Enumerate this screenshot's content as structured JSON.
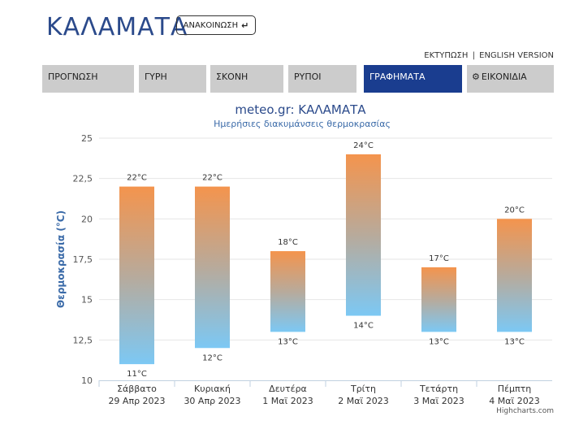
{
  "header": {
    "title": "ΚΑΛΑΜΑΤΑ",
    "announce_label": "ΑΝΑΚΟΙΝΩΣΗ",
    "announce_icon": "return-arrow-icon",
    "print_label": "ΕΚΤΥΠΩΣΗ",
    "separator": "|",
    "english_label": "ENGLISH VERSION"
  },
  "tabs": [
    {
      "label": "ΠΡΟΓΝΩΣΗ",
      "active": false
    },
    {
      "label": "ΓΥΡΗ",
      "active": false
    },
    {
      "label": "ΣΚΟΝΗ",
      "active": false
    },
    {
      "label": "ΡΥΠΟΙ",
      "active": false
    },
    {
      "label": "ΓΡΑΦΗΜΑΤΑ",
      "active": true
    },
    {
      "label": "ΕΙΚΟΝΙΔΙΑ",
      "active": false,
      "icon": "gear-icon"
    }
  ],
  "colors": {
    "brand": "#2b4a8b",
    "active_tab": "#1a3d8f",
    "tab": "#cccccc",
    "bar_top": "#f4944d",
    "bar_bottom": "#7cc8f4"
  },
  "chart_data": {
    "type": "bar",
    "subtype": "columnrange",
    "title": "meteo.gr: ΚΑΛΑΜΑΤΑ",
    "subtitle": "Ημερήσιες διακυμάνσεις θερμοκρασίας",
    "ylabel": "Θερμοκρασία (°C)",
    "ylim": [
      10,
      25
    ],
    "yticks": [
      "10",
      "12,5",
      "15",
      "17,5",
      "20",
      "22,5",
      "25"
    ],
    "grid": true,
    "categories": [
      {
        "day": "Σάββατο",
        "date": "29 Απρ 2023"
      },
      {
        "day": "Κυριακή",
        "date": "30 Απρ 2023"
      },
      {
        "day": "Δευτέρα",
        "date": "1 Μαϊ 2023"
      },
      {
        "day": "Τρίτη",
        "date": "2 Μαϊ 2023"
      },
      {
        "day": "Τετάρτη",
        "date": "3 Μαϊ 2023"
      },
      {
        "day": "Πέμπτη",
        "date": "4 Μαϊ 2023"
      }
    ],
    "low": [
      11,
      12,
      13,
      14,
      13,
      13
    ],
    "high": [
      22,
      22,
      18,
      24,
      17,
      20
    ],
    "low_labels": [
      "11°C",
      "12°C",
      "13°C",
      "14°C",
      "13°C",
      "13°C"
    ],
    "high_labels": [
      "22°C",
      "22°C",
      "18°C",
      "24°C",
      "17°C",
      "20°C"
    ],
    "credit": "Highcharts.com"
  }
}
